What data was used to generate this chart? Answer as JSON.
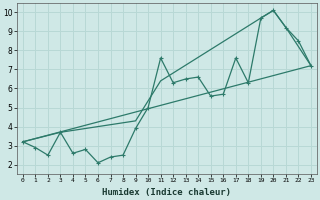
{
  "xlabel": "Humidex (Indice chaleur)",
  "xlim": [
    -0.5,
    23.5
  ],
  "ylim": [
    1.5,
    10.5
  ],
  "xticks": [
    0,
    1,
    2,
    3,
    4,
    5,
    6,
    7,
    8,
    9,
    10,
    11,
    12,
    13,
    14,
    15,
    16,
    17,
    18,
    19,
    20,
    21,
    22,
    23
  ],
  "yticks": [
    2,
    3,
    4,
    5,
    6,
    7,
    8,
    9,
    10
  ],
  "bg_color": "#cfe8e6",
  "grid_color": "#b8d8d5",
  "line_color": "#2d7a6a",
  "series1_x": [
    0,
    1,
    2,
    3,
    4,
    5,
    6,
    7,
    8,
    9,
    10,
    11,
    12,
    13,
    14,
    15,
    16,
    17,
    18,
    19,
    20,
    21,
    22,
    23
  ],
  "series1_y": [
    3.2,
    2.9,
    2.5,
    3.7,
    2.6,
    2.8,
    2.1,
    2.4,
    2.5,
    3.9,
    5.0,
    7.6,
    6.3,
    6.5,
    6.6,
    5.6,
    5.7,
    7.6,
    6.3,
    9.7,
    10.1,
    9.2,
    8.5,
    7.2
  ],
  "series2_x": [
    0,
    3,
    9,
    11,
    19,
    20,
    21,
    23
  ],
  "series2_y": [
    3.2,
    3.7,
    4.3,
    6.4,
    9.7,
    10.1,
    9.2,
    7.2
  ],
  "series3_x": [
    0,
    23
  ],
  "series3_y": [
    3.2,
    7.2
  ],
  "marker_size": 2.5,
  "linewidth": 0.9
}
